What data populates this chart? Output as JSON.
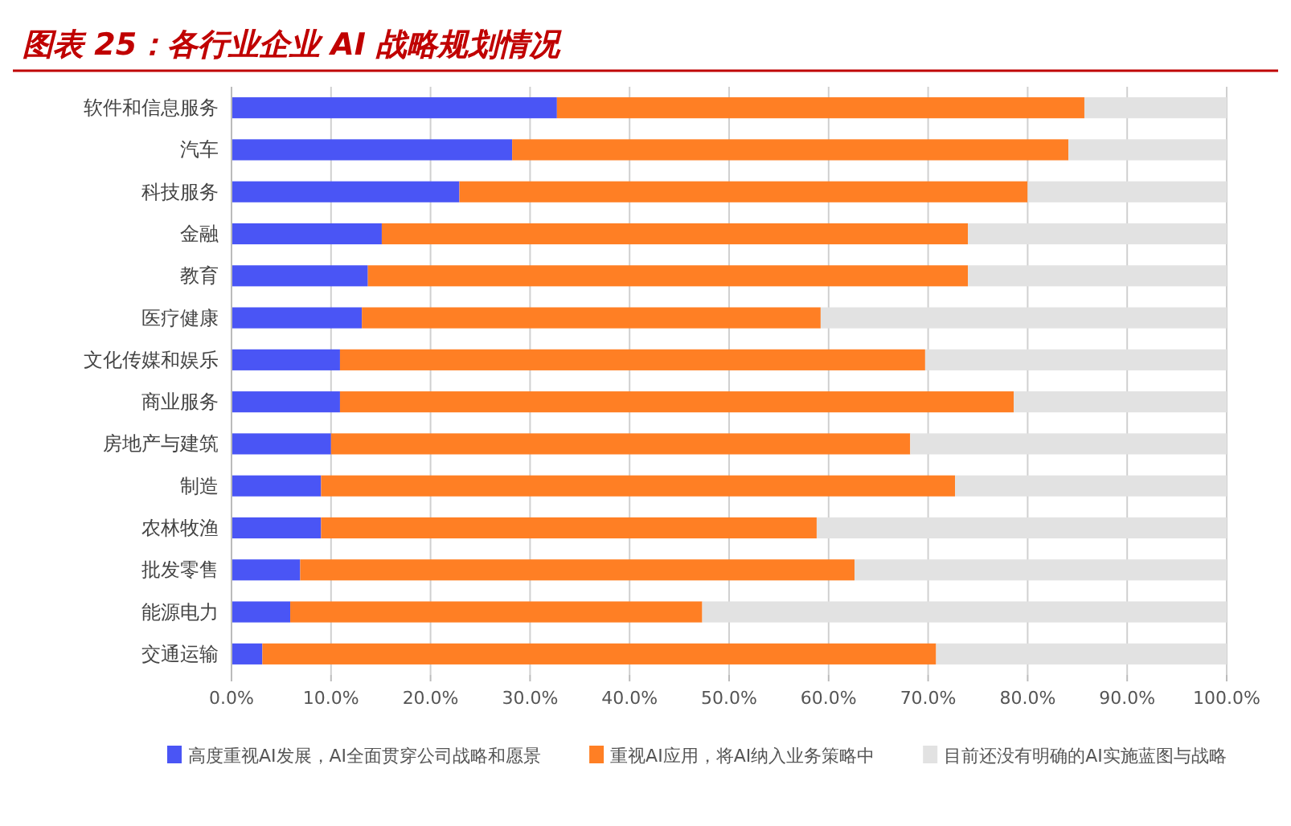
{
  "chart_data": {
    "type": "bar",
    "orientation": "horizontal",
    "stacked": true,
    "title": "图表 25：各行业企业 AI 战略规划情况",
    "categories": [
      "软件和信息服务",
      "汽车",
      "科技服务",
      "金融",
      "教育",
      "医疗健康",
      "文化传媒和娱乐",
      "商业服务",
      "房地产与建筑",
      "制造",
      "农林牧渔",
      "批发零售",
      "能源电力",
      "交通运输"
    ],
    "series": [
      {
        "name": "高度重视AI发展，AI全面贯穿公司战略和愿景",
        "color": "#4a55f5",
        "values": [
          32.7,
          28.2,
          22.9,
          15.1,
          13.7,
          13.1,
          10.9,
          10.9,
          10.0,
          9.0,
          9.0,
          6.9,
          5.9,
          3.1
        ]
      },
      {
        "name": "重视AI应用，将AI纳入业务策略中",
        "color": "#ff7f24",
        "values": [
          53.0,
          55.9,
          57.1,
          58.9,
          60.3,
          46.1,
          58.8,
          67.7,
          58.2,
          63.7,
          49.8,
          55.7,
          41.4,
          67.7
        ]
      },
      {
        "name": "目前还没有明确的AI实施蓝图与战略",
        "color": "#e2e2e2",
        "values": [
          14.3,
          15.9,
          20.0,
          26.0,
          26.0,
          40.8,
          30.3,
          21.4,
          31.8,
          27.3,
          41.2,
          37.4,
          52.7,
          29.2
        ]
      }
    ],
    "xlim": [
      0,
      100
    ],
    "xticks": [
      {
        "value": 0,
        "label": "0.0%"
      },
      {
        "value": 10,
        "label": "10.0%"
      },
      {
        "value": 20,
        "label": "20.0%"
      },
      {
        "value": 30,
        "label": "30.0%"
      },
      {
        "value": 40,
        "label": "40.0%"
      },
      {
        "value": 50,
        "label": "50.0%"
      },
      {
        "value": 60,
        "label": "60.0%"
      },
      {
        "value": 70,
        "label": "70.0%"
      },
      {
        "value": 80,
        "label": "80.0%"
      },
      {
        "value": 90,
        "label": "90.0%"
      },
      {
        "value": 100,
        "label": "100.0%"
      }
    ],
    "grid": "x",
    "legend": "bottom"
  }
}
